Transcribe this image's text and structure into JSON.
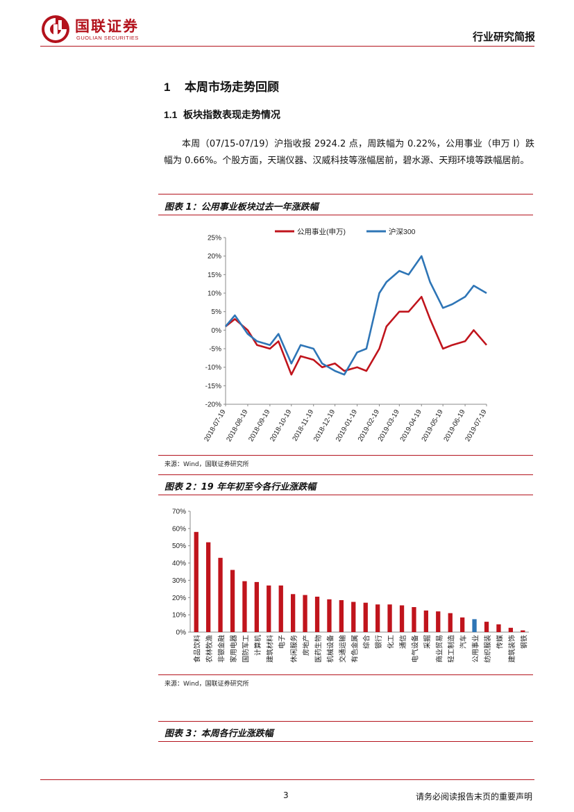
{
  "header": {
    "logo_cn": "国联证券",
    "logo_en": "GUOLIAN SECURITIES",
    "doc_type": "行业研究简报",
    "accent_color": "#b3121c"
  },
  "section": {
    "number": "1",
    "title": "本周市场走势回顾",
    "sub_number": "1.1",
    "sub_title": "板块指数表现走势情况",
    "paragraph": "本周（07/15-07/19）沪指收报 2924.2 点，周跌幅为 0.22%，公用事业（申万 I）跌幅为 0.66%。个股方面，天瑞仪器、汉威科技等涨幅居前，碧水源、天翔环境等跌幅居前。"
  },
  "figures": {
    "fig1_title": "图表 1：公用事业板块过去一年涨跌幅",
    "fig1_source": "来源：Wind，国联证券研究所",
    "fig2_title": "图表 2：19 年年初至今各行业涨跌幅",
    "fig2_source": "来源：Wind，国联证券研究所",
    "fig3_title": "图表 3：本周各行业涨跌幅"
  },
  "chart_data": [
    {
      "type": "line",
      "title": "",
      "xlabel": "",
      "ylabel": "",
      "legend_position": "top-center",
      "ylim": [
        -20,
        25
      ],
      "y_ticks": [
        "25%",
        "20%",
        "15%",
        "10%",
        "5%",
        "0%",
        "-5%",
        "-10%",
        "-15%",
        "-20%"
      ],
      "x_ticks": [
        "2018-07-19",
        "2018-08-19",
        "2018-09-19",
        "2018-10-19",
        "2018-11-19",
        "2018-12-19",
        "2019-01-19",
        "2019-02-19",
        "2019-03-19",
        "2019-04-19",
        "2019-05-19",
        "2019-06-19",
        "2019-07-19"
      ],
      "x": [
        "2018-07-19",
        "2018-08-01",
        "2018-08-19",
        "2018-09-01",
        "2018-09-19",
        "2018-10-01",
        "2018-10-19",
        "2018-11-01",
        "2018-11-19",
        "2018-12-01",
        "2018-12-19",
        "2019-01-01",
        "2019-01-19",
        "2019-02-01",
        "2019-02-19",
        "2019-03-01",
        "2019-03-19",
        "2019-04-01",
        "2019-04-19",
        "2019-05-01",
        "2019-05-19",
        "2019-06-01",
        "2019-06-19",
        "2019-07-01",
        "2019-07-19"
      ],
      "series": [
        {
          "name": "公用事业(申万)",
          "color": "#c0141c",
          "values": [
            1,
            3,
            0,
            -4,
            -5,
            -3,
            -12,
            -7,
            -8,
            -10,
            -9,
            -11,
            -10,
            -11,
            -5,
            1,
            5,
            5,
            9,
            3,
            -5,
            -4,
            -3,
            0,
            -4
          ]
        },
        {
          "name": "沪深300",
          "color": "#2e75b6",
          "values": [
            1,
            4,
            -1,
            -3,
            -4,
            -1,
            -9,
            -4,
            -5,
            -9,
            -11,
            -12,
            -6,
            -5,
            10,
            13,
            16,
            15,
            20,
            13,
            6,
            7,
            9,
            12,
            10
          ]
        }
      ]
    },
    {
      "type": "bar",
      "title": "",
      "xlabel": "",
      "ylabel": "",
      "ylim": [
        0,
        70
      ],
      "y_ticks": [
        "70%",
        "60%",
        "50%",
        "40%",
        "30%",
        "20%",
        "10%",
        "0%"
      ],
      "categories": [
        "食品饮料",
        "农林牧渔",
        "非银金融",
        "家用电器",
        "国防军工",
        "计算机",
        "建筑材料",
        "电子",
        "休闲服务",
        "房地产",
        "医药生物",
        "机械设备",
        "交通运输",
        "有色金属",
        "综合",
        "银行",
        "化工",
        "通信",
        "电气设备",
        "采掘",
        "商业贸易",
        "轻工制造",
        "汽车",
        "公用事业",
        "纺织服装",
        "传媒",
        "建筑装饰",
        "钢铁"
      ],
      "values": [
        58,
        52,
        43,
        36,
        29.5,
        29,
        27,
        27,
        22,
        21.5,
        20.5,
        19,
        18.5,
        17.5,
        17,
        16,
        16,
        15.5,
        14.5,
        12.5,
        12,
        11,
        8.5,
        7.5,
        6,
        4.5,
        2.5,
        1
      ],
      "bar_color": "#c0141c",
      "highlight_category": "公用事业",
      "highlight_color": "#2e75b6"
    }
  ],
  "footer": {
    "page_number": "3",
    "disclaimer": "请务必阅读报告末页的重要声明"
  }
}
